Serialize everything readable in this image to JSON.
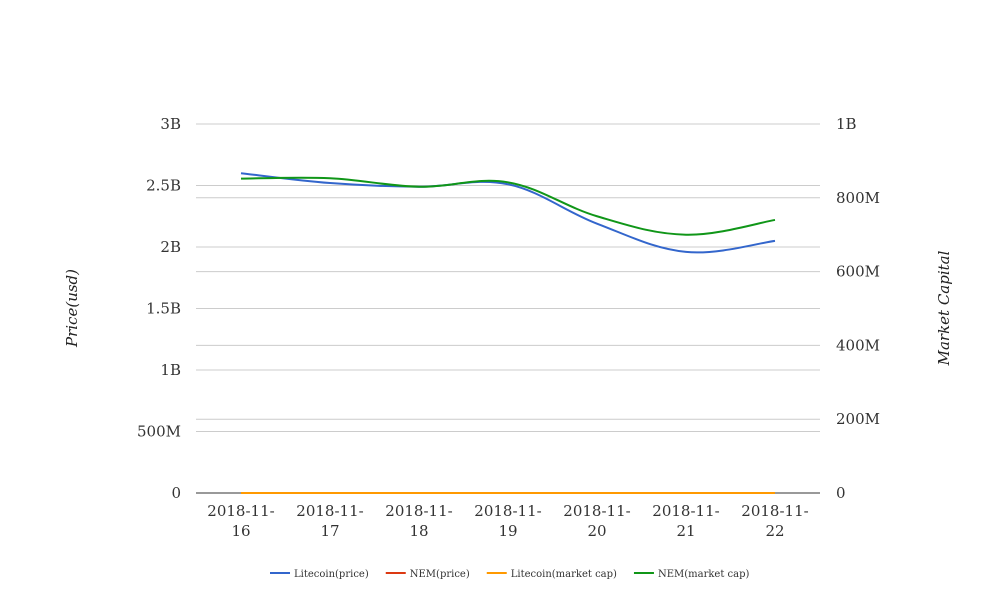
{
  "chart_data": {
    "type": "line",
    "title": "",
    "x": [
      "2018-11-16",
      "2018-11-17",
      "2018-11-18",
      "2018-11-19",
      "2018-11-20",
      "2018-11-21",
      "2018-11-22"
    ],
    "x_tick_labels": [
      [
        "2018-11-",
        "16"
      ],
      [
        "2018-11-",
        "17"
      ],
      [
        "2018-11-",
        "18"
      ],
      [
        "2018-11-",
        "19"
      ],
      [
        "2018-11-",
        "20"
      ],
      [
        "2018-11-",
        "21"
      ],
      [
        "2018-11-",
        "22"
      ]
    ],
    "y_left": {
      "label": "Price(usd)",
      "ylim": [
        0,
        3000000000
      ],
      "ticks": [
        0,
        500000000,
        1000000000,
        1500000000,
        2000000000,
        2500000000,
        3000000000
      ],
      "tick_labels": [
        "0",
        "500M",
        "1B",
        "1.5B",
        "2B",
        "2.5B",
        "3B"
      ]
    },
    "y_right": {
      "label": "Market Capital",
      "ylim": [
        0,
        1000000000
      ],
      "ticks": [
        0,
        200000000,
        400000000,
        600000000,
        800000000,
        1000000000
      ],
      "tick_labels": [
        "0",
        "200M",
        "400M",
        "600M",
        "800M",
        "1B"
      ]
    },
    "series": [
      {
        "name": "Litecoin(price)",
        "axis": "left",
        "color": "#3366cc",
        "values": [
          2600000000,
          2520000000,
          2490000000,
          2510000000,
          2190000000,
          1960000000,
          2050000000
        ]
      },
      {
        "name": "NEM(price)",
        "axis": "left",
        "color": "#dc3912",
        "values": [
          0,
          0,
          0,
          0,
          0,
          0,
          0
        ]
      },
      {
        "name": "Litecoin(market cap)",
        "axis": "left",
        "color": "#ff9900",
        "values": [
          0,
          0,
          0,
          0,
          0,
          0,
          0
        ]
      },
      {
        "name": "NEM(market cap)",
        "axis": "right",
        "color": "#109618",
        "values": [
          852000000,
          853000000,
          830000000,
          842000000,
          750000000,
          700000000,
          740000000
        ]
      }
    ],
    "grid": true,
    "legend_position": "bottom"
  }
}
